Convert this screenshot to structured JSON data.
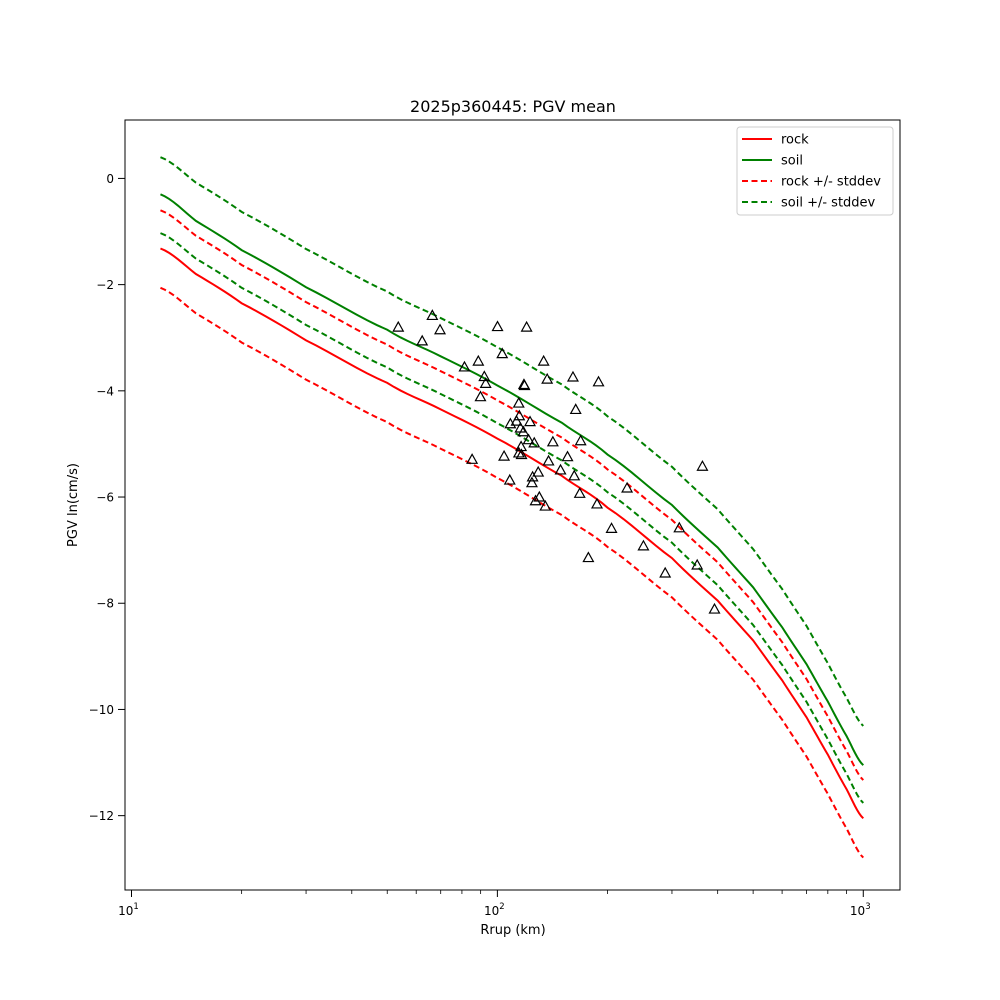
{
  "chart_data": {
    "type": "line",
    "title": "2025p360445: PGV mean",
    "xlabel": "Rrup (km)",
    "ylabel": "PGV ln(cm/s)",
    "xscale": "log",
    "xlim": [
      9.6,
      1260
    ],
    "ylim": [
      -13.4,
      1.1
    ],
    "grid": false,
    "legend_position": "top-right",
    "x_ticks": [
      {
        "value": 10,
        "base": "10",
        "exp": "1"
      },
      {
        "value": 100,
        "base": "10",
        "exp": "2"
      },
      {
        "value": 1000,
        "base": "10",
        "exp": "3"
      }
    ],
    "y_ticks": [
      {
        "value": 0,
        "label": "0"
      },
      {
        "value": -2,
        "label": "−2"
      },
      {
        "value": -4,
        "label": "−4"
      },
      {
        "value": -6,
        "label": "−6"
      },
      {
        "value": -8,
        "label": "−8"
      },
      {
        "value": -10,
        "label": "−10"
      },
      {
        "value": -12,
        "label": "−12"
      }
    ],
    "x": [
      12,
      15,
      20,
      30,
      50,
      70,
      100,
      150,
      200,
      300,
      400,
      500,
      600,
      700,
      800,
      900,
      1000
    ],
    "series": [
      {
        "name": "rock",
        "color": "#ff0000",
        "style": "solid",
        "values": [
          -1.32,
          -1.8,
          -2.35,
          -3.05,
          -3.85,
          -4.35,
          -4.9,
          -5.6,
          -6.2,
          -7.15,
          -7.95,
          -8.7,
          -9.45,
          -10.15,
          -10.85,
          -11.5,
          -12.05
        ]
      },
      {
        "name": "soil",
        "color": "#008000",
        "style": "solid",
        "values": [
          -0.3,
          -0.8,
          -1.35,
          -2.05,
          -2.85,
          -3.35,
          -3.9,
          -4.6,
          -5.2,
          -6.15,
          -6.95,
          -7.7,
          -8.45,
          -9.15,
          -9.85,
          -10.5,
          -11.05
        ]
      },
      {
        "name": "rock +/- stddev",
        "color": "#ff0000",
        "style": "dashed",
        "values": [
          -0.6,
          -1.08,
          -1.63,
          -2.33,
          -3.13,
          -3.63,
          -4.18,
          -4.88,
          -5.48,
          -6.43,
          -7.23,
          -7.98,
          -8.73,
          -9.43,
          -10.13,
          -10.78,
          -11.33
        ],
        "lower": [
          -2.06,
          -2.54,
          -3.09,
          -3.79,
          -4.59,
          -5.09,
          -5.64,
          -6.34,
          -6.94,
          -7.89,
          -8.69,
          -9.44,
          -10.19,
          -10.89,
          -11.59,
          -12.24,
          -12.79
        ]
      },
      {
        "name": "soil +/- stddev",
        "color": "#008000",
        "style": "dashed",
        "values": [
          0.4,
          -0.08,
          -0.63,
          -1.33,
          -2.13,
          -2.63,
          -3.18,
          -3.88,
          -4.48,
          -5.43,
          -6.23,
          -6.98,
          -7.73,
          -8.43,
          -9.13,
          -9.78,
          -10.31
        ],
        "lower": [
          -1.03,
          -1.51,
          -2.06,
          -2.76,
          -3.56,
          -4.06,
          -4.61,
          -5.31,
          -5.91,
          -6.86,
          -7.66,
          -8.41,
          -9.16,
          -9.86,
          -10.56,
          -11.21,
          -11.76
        ]
      }
    ],
    "observations": {
      "marker": "triangle",
      "points": [
        [
          53.6,
          -2.8
        ],
        [
          66.4,
          -2.58
        ],
        [
          69.7,
          -2.85
        ],
        [
          62.3,
          -3.06
        ],
        [
          81.3,
          -3.55
        ],
        [
          88.7,
          -3.44
        ],
        [
          92.1,
          -3.73
        ],
        [
          92.9,
          -3.86
        ],
        [
          89.9,
          -4.11
        ],
        [
          100.1,
          -2.79
        ],
        [
          103.1,
          -3.3
        ],
        [
          108.5,
          -4.62
        ],
        [
          112.8,
          -4.57
        ],
        [
          114.4,
          -4.23
        ],
        [
          114.8,
          -4.47
        ],
        [
          115.6,
          -4.7
        ],
        [
          117.8,
          -4.77
        ],
        [
          118.2,
          -3.88
        ],
        [
          118.6,
          -3.9
        ],
        [
          120.2,
          -2.8
        ],
        [
          122.8,
          -4.58
        ],
        [
          121.7,
          -4.92
        ],
        [
          126.1,
          -4.98
        ],
        [
          116.1,
          -5.05
        ],
        [
          114.5,
          -5.17
        ],
        [
          116.4,
          -5.2
        ],
        [
          104.3,
          -5.23
        ],
        [
          85.3,
          -5.29
        ],
        [
          129.3,
          -5.53
        ],
        [
          124.8,
          -5.62
        ],
        [
          124.3,
          -5.73
        ],
        [
          108.1,
          -5.68
        ],
        [
          130.2,
          -6.0
        ],
        [
          127.1,
          -6.07
        ],
        [
          135.2,
          -6.17
        ],
        [
          133.8,
          -3.44
        ],
        [
          136.8,
          -3.78
        ],
        [
          141.8,
          -4.96
        ],
        [
          138.0,
          -5.32
        ],
        [
          148.8,
          -5.49
        ],
        [
          155.5,
          -5.24
        ],
        [
          162.2,
          -5.6
        ],
        [
          167.9,
          -5.93
        ],
        [
          160.9,
          -3.74
        ],
        [
          163.7,
          -4.35
        ],
        [
          168.9,
          -4.94
        ],
        [
          189.0,
          -3.83
        ],
        [
          187.2,
          -6.13
        ],
        [
          177.3,
          -7.14
        ],
        [
          205.1,
          -6.59
        ],
        [
          226.2,
          -5.83
        ],
        [
          250.7,
          -6.92
        ],
        [
          287.5,
          -7.43
        ],
        [
          314.2,
          -6.58
        ],
        [
          351.6,
          -7.28
        ],
        [
          363.4,
          -5.42
        ],
        [
          392.1,
          -8.11
        ]
      ]
    }
  }
}
